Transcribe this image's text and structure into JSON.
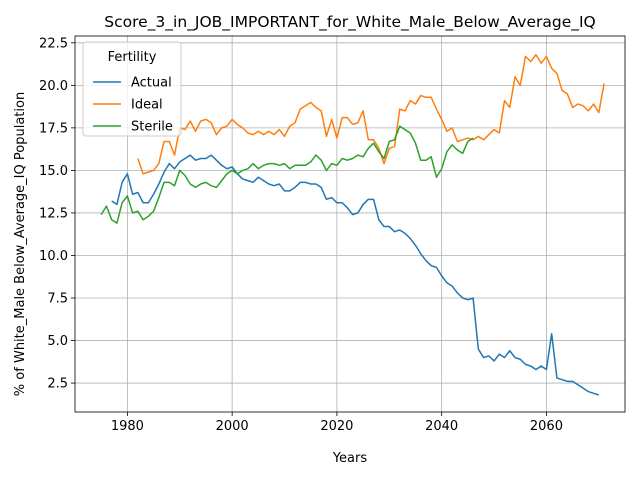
{
  "chart_data": {
    "type": "line",
    "title": "Score_3_in_JOB_IMPORTANT_for_White_Male_Below_Average_IQ",
    "xlabel": "Years",
    "ylabel": "% of White_Male Below_Average_IQ Population",
    "xlim": [
      1970,
      2075
    ],
    "ylim": [
      0.8,
      22.9
    ],
    "xticks": [
      1980,
      2000,
      2020,
      2040,
      2060
    ],
    "xtick_labels": [
      "1980",
      "2000",
      "2020",
      "2040",
      "2060"
    ],
    "yticks": [
      2.5,
      5.0,
      7.5,
      10.0,
      12.5,
      15.0,
      17.5,
      20.0,
      22.5
    ],
    "ytick_labels": [
      "2.5",
      "5.0",
      "7.5",
      "10.0",
      "12.5",
      "15.0",
      "17.5",
      "20.0",
      "22.5"
    ],
    "grid": true,
    "legend": {
      "title": "Fertility",
      "position": "upper-left"
    },
    "series": [
      {
        "name": "Actual",
        "color": "#1f77b4",
        "points": [
          [
            1977,
            13.2
          ],
          [
            1978,
            13.0
          ],
          [
            1979,
            14.3
          ],
          [
            1980,
            14.8
          ],
          [
            1981,
            13.6
          ],
          [
            1982,
            13.7
          ],
          [
            1983,
            13.1
          ],
          [
            1984,
            13.1
          ],
          [
            1985,
            13.6
          ],
          [
            1986,
            14.2
          ],
          [
            1987,
            14.9
          ],
          [
            1988,
            15.4
          ],
          [
            1989,
            15.1
          ],
          [
            1990,
            15.5
          ],
          [
            1991,
            15.7
          ],
          [
            1992,
            15.9
          ],
          [
            1993,
            15.6
          ],
          [
            1994,
            15.7
          ],
          [
            1995,
            15.7
          ],
          [
            1996,
            15.9
          ],
          [
            1997,
            15.6
          ],
          [
            1998,
            15.3
          ],
          [
            1999,
            15.1
          ],
          [
            2000,
            15.2
          ],
          [
            2001,
            14.8
          ],
          [
            2002,
            14.5
          ],
          [
            2003,
            14.4
          ],
          [
            2004,
            14.3
          ],
          [
            2005,
            14.6
          ],
          [
            2006,
            14.4
          ],
          [
            2007,
            14.2
          ],
          [
            2008,
            14.1
          ],
          [
            2009,
            14.2
          ],
          [
            2010,
            13.8
          ],
          [
            2011,
            13.8
          ],
          [
            2012,
            14.0
          ],
          [
            2013,
            14.3
          ],
          [
            2014,
            14.3
          ],
          [
            2015,
            14.2
          ],
          [
            2016,
            14.2
          ],
          [
            2017,
            14.0
          ],
          [
            2018,
            13.3
          ],
          [
            2019,
            13.4
          ],
          [
            2020,
            13.1
          ],
          [
            2021,
            13.1
          ],
          [
            2022,
            12.8
          ],
          [
            2023,
            12.4
          ],
          [
            2024,
            12.5
          ],
          [
            2025,
            13.0
          ],
          [
            2026,
            13.3
          ],
          [
            2027,
            13.3
          ],
          [
            2028,
            12.1
          ],
          [
            2029,
            11.7
          ],
          [
            2030,
            11.7
          ],
          [
            2031,
            11.4
          ],
          [
            2032,
            11.5
          ],
          [
            2033,
            11.3
          ],
          [
            2034,
            11.0
          ],
          [
            2035,
            10.6
          ],
          [
            2036,
            10.1
          ],
          [
            2037,
            9.7
          ],
          [
            2038,
            9.4
          ],
          [
            2039,
            9.3
          ],
          [
            2040,
            8.8
          ],
          [
            2041,
            8.4
          ],
          [
            2042,
            8.2
          ],
          [
            2043,
            7.8
          ],
          [
            2044,
            7.5
          ],
          [
            2045,
            7.4
          ],
          [
            2046,
            7.5
          ],
          [
            2047,
            4.5
          ],
          [
            2048,
            4.0
          ],
          [
            2049,
            4.1
          ],
          [
            2050,
            3.8
          ],
          [
            2051,
            4.2
          ],
          [
            2052,
            4.0
          ],
          [
            2053,
            4.4
          ],
          [
            2054,
            4.0
          ],
          [
            2055,
            3.9
          ],
          [
            2056,
            3.6
          ],
          [
            2057,
            3.5
          ],
          [
            2058,
            3.3
          ],
          [
            2059,
            3.5
          ],
          [
            2060,
            3.3
          ],
          [
            2061,
            5.4
          ],
          [
            2062,
            2.8
          ],
          [
            2063,
            2.7
          ],
          [
            2064,
            2.6
          ],
          [
            2065,
            2.6
          ],
          [
            2066,
            2.4
          ],
          [
            2067,
            2.2
          ],
          [
            2068,
            2.0
          ],
          [
            2069,
            1.9
          ],
          [
            2070,
            1.8
          ]
        ]
      },
      {
        "name": "Ideal",
        "color": "#ff7f0e",
        "points": [
          [
            1982,
            15.7
          ],
          [
            1983,
            14.8
          ],
          [
            1984,
            14.9
          ],
          [
            1985,
            15.0
          ],
          [
            1986,
            15.4
          ],
          [
            1987,
            16.7
          ],
          [
            1988,
            16.7
          ],
          [
            1989,
            15.9
          ],
          [
            1990,
            17.5
          ],
          [
            1991,
            17.4
          ],
          [
            1992,
            17.9
          ],
          [
            1993,
            17.3
          ],
          [
            1994,
            17.9
          ],
          [
            1995,
            18.0
          ],
          [
            1996,
            17.8
          ],
          [
            1997,
            17.1
          ],
          [
            1998,
            17.5
          ],
          [
            1999,
            17.6
          ],
          [
            2000,
            18.0
          ],
          [
            2001,
            17.7
          ],
          [
            2002,
            17.5
          ],
          [
            2003,
            17.2
          ],
          [
            2004,
            17.1
          ],
          [
            2005,
            17.3
          ],
          [
            2006,
            17.1
          ],
          [
            2007,
            17.3
          ],
          [
            2008,
            17.1
          ],
          [
            2009,
            17.4
          ],
          [
            2010,
            17.0
          ],
          [
            2011,
            17.6
          ],
          [
            2012,
            17.8
          ],
          [
            2013,
            18.6
          ],
          [
            2014,
            18.8
          ],
          [
            2015,
            19.0
          ],
          [
            2016,
            18.7
          ],
          [
            2017,
            18.5
          ],
          [
            2018,
            17.0
          ],
          [
            2019,
            18.0
          ],
          [
            2020,
            16.9
          ],
          [
            2021,
            18.1
          ],
          [
            2022,
            18.1
          ],
          [
            2023,
            17.7
          ],
          [
            2024,
            17.8
          ],
          [
            2025,
            18.5
          ],
          [
            2026,
            16.8
          ],
          [
            2027,
            16.8
          ],
          [
            2028,
            16.3
          ],
          [
            2029,
            15.4
          ],
          [
            2030,
            16.3
          ],
          [
            2031,
            16.4
          ],
          [
            2032,
            18.6
          ],
          [
            2033,
            18.5
          ],
          [
            2034,
            19.1
          ],
          [
            2035,
            18.9
          ],
          [
            2036,
            19.4
          ],
          [
            2037,
            19.3
          ],
          [
            2038,
            19.3
          ],
          [
            2039,
            18.6
          ],
          [
            2040,
            18.0
          ],
          [
            2041,
            17.3
          ],
          [
            2042,
            17.5
          ],
          [
            2043,
            16.7
          ],
          [
            2044,
            16.8
          ],
          [
            2045,
            16.9
          ],
          [
            2046,
            16.8
          ],
          [
            2047,
            17.0
          ],
          [
            2048,
            16.8
          ],
          [
            2049,
            17.1
          ],
          [
            2050,
            17.4
          ],
          [
            2051,
            17.2
          ],
          [
            2052,
            19.1
          ],
          [
            2053,
            18.7
          ],
          [
            2054,
            20.5
          ],
          [
            2055,
            20.0
          ],
          [
            2056,
            21.7
          ],
          [
            2057,
            21.4
          ],
          [
            2058,
            21.8
          ],
          [
            2059,
            21.3
          ],
          [
            2060,
            21.7
          ],
          [
            2061,
            21.0
          ],
          [
            2062,
            20.7
          ],
          [
            2063,
            19.7
          ],
          [
            2064,
            19.5
          ],
          [
            2065,
            18.7
          ],
          [
            2066,
            18.9
          ],
          [
            2067,
            18.8
          ],
          [
            2068,
            18.5
          ],
          [
            2069,
            18.9
          ],
          [
            2070,
            18.4
          ],
          [
            2071,
            20.1
          ]
        ]
      },
      {
        "name": "Sterile",
        "color": "#2ca02c",
        "points": [
          [
            1975,
            12.4
          ],
          [
            1976,
            12.9
          ],
          [
            1977,
            12.1
          ],
          [
            1978,
            11.9
          ],
          [
            1979,
            13.1
          ],
          [
            1980,
            13.5
          ],
          [
            1981,
            12.5
          ],
          [
            1982,
            12.6
          ],
          [
            1983,
            12.1
          ],
          [
            1984,
            12.3
          ],
          [
            1985,
            12.6
          ],
          [
            1986,
            13.4
          ],
          [
            1987,
            14.3
          ],
          [
            1988,
            14.3
          ],
          [
            1989,
            14.1
          ],
          [
            1990,
            15.0
          ],
          [
            1991,
            14.7
          ],
          [
            1992,
            14.2
          ],
          [
            1993,
            14.0
          ],
          [
            1994,
            14.2
          ],
          [
            1995,
            14.3
          ],
          [
            1996,
            14.1
          ],
          [
            1997,
            14.0
          ],
          [
            1998,
            14.4
          ],
          [
            1999,
            14.8
          ],
          [
            2000,
            15.0
          ],
          [
            2001,
            14.8
          ],
          [
            2002,
            15.0
          ],
          [
            2003,
            15.1
          ],
          [
            2004,
            15.4
          ],
          [
            2005,
            15.1
          ],
          [
            2006,
            15.3
          ],
          [
            2007,
            15.4
          ],
          [
            2008,
            15.4
          ],
          [
            2009,
            15.3
          ],
          [
            2010,
            15.4
          ],
          [
            2011,
            15.1
          ],
          [
            2012,
            15.3
          ],
          [
            2013,
            15.3
          ],
          [
            2014,
            15.3
          ],
          [
            2015,
            15.5
          ],
          [
            2016,
            15.9
          ],
          [
            2017,
            15.6
          ],
          [
            2018,
            15.0
          ],
          [
            2019,
            15.4
          ],
          [
            2020,
            15.3
          ],
          [
            2021,
            15.7
          ],
          [
            2022,
            15.6
          ],
          [
            2023,
            15.7
          ],
          [
            2024,
            15.9
          ],
          [
            2025,
            15.8
          ],
          [
            2026,
            16.3
          ],
          [
            2027,
            16.6
          ],
          [
            2028,
            16.1
          ],
          [
            2029,
            15.7
          ],
          [
            2030,
            16.7
          ],
          [
            2031,
            16.8
          ],
          [
            2032,
            17.6
          ],
          [
            2033,
            17.4
          ],
          [
            2034,
            17.2
          ],
          [
            2035,
            16.6
          ],
          [
            2036,
            15.6
          ],
          [
            2037,
            15.6
          ],
          [
            2038,
            15.8
          ],
          [
            2039,
            14.6
          ],
          [
            2040,
            15.1
          ],
          [
            2041,
            16.1
          ],
          [
            2042,
            16.5
          ],
          [
            2043,
            16.2
          ],
          [
            2044,
            16.0
          ],
          [
            2045,
            16.7
          ],
          [
            2046,
            16.9
          ]
        ]
      }
    ]
  }
}
